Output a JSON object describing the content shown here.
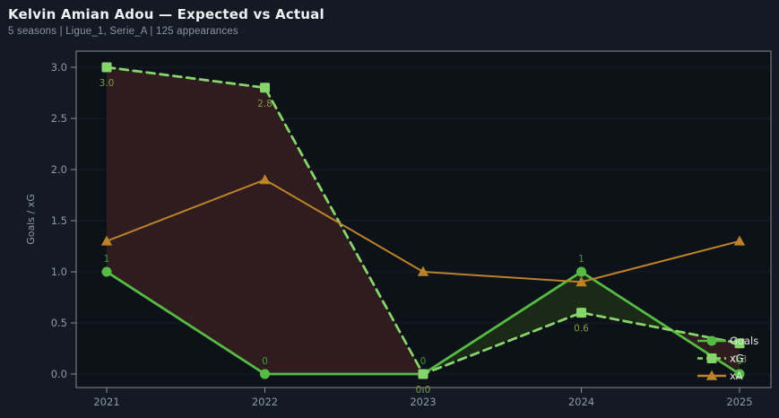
{
  "header": {
    "title": "Kelvin Amian Adou — Expected vs Actual",
    "subtitle": "5 seasons | Ligue_1, Serie_A | 125 appearances"
  },
  "colors": {
    "background": "#141a23",
    "plot_background": "#0d1118",
    "goals_green": "#55bb45",
    "goals_label_green": "#3e9d36",
    "xg_green": "#86d46c",
    "xg_label_olive": "#7f9c41",
    "xa_orange": "#bb8229",
    "fill_xg_above": "#2f1c1e",
    "fill_goals_above": "#1b2a16",
    "spine": "#858c95",
    "tick_text": "#9098a1",
    "legend_text": "#e4e7ea",
    "grid": "#161c26"
  },
  "chart_data": {
    "type": "line",
    "title": "Kelvin Amian Adou — Expected vs Actual",
    "subtitle": "5 seasons | Ligue_1, Serie_A | 125 appearances",
    "x": [
      2021,
      2022,
      2023,
      2024,
      2025
    ],
    "x_tick_labels": [
      "2021",
      "2022",
      "2023",
      "2024",
      "2025"
    ],
    "xlabel": "",
    "ylabel": "Goals / xG",
    "yticks": [
      0.0,
      0.5,
      1.0,
      1.5,
      2.0,
      2.5,
      3.0
    ],
    "ytick_labels": [
      "0.0",
      "0.5",
      "1.0",
      "1.5",
      "2.0",
      "2.5",
      "3.0"
    ],
    "ylim": [
      -0.13,
      3.16
    ],
    "grid": "faint horizontal lines at y ticks",
    "legend_position": "lower right",
    "series": [
      {
        "name": "Goals",
        "line_style": "solid",
        "marker": "circle",
        "color": "#55bb45",
        "label_color": "#3e9d36",
        "values": [
          1,
          0,
          0,
          1,
          0
        ],
        "point_labels": [
          "1",
          "0",
          "0",
          "1",
          "0"
        ],
        "label_side": "above"
      },
      {
        "name": "xG",
        "line_style": "dashed",
        "marker": "square",
        "color": "#86d46c",
        "label_color": "#7f9c41",
        "values": [
          3.0,
          2.8,
          0.0,
          0.6,
          0.3
        ],
        "point_labels": [
          "3.0",
          "2.8",
          "0.0",
          "0.6",
          "0.3"
        ],
        "label_side": "below"
      },
      {
        "name": "xA",
        "line_style": "solid",
        "marker": "triangle",
        "color": "#bb8229",
        "label_color": "",
        "values": [
          1.3,
          1.9,
          1.0,
          0.9,
          1.3
        ],
        "point_labels": [],
        "label_side": "none"
      }
    ],
    "fill_between": {
      "upper": "xG",
      "lower": "Goals",
      "color_when_xg_above": "#2f1c1e",
      "color_when_goals_above": "#1b2a16"
    },
    "legend": [
      {
        "label": "Goals"
      },
      {
        "label": "xG"
      },
      {
        "label": "xA"
      }
    ]
  }
}
